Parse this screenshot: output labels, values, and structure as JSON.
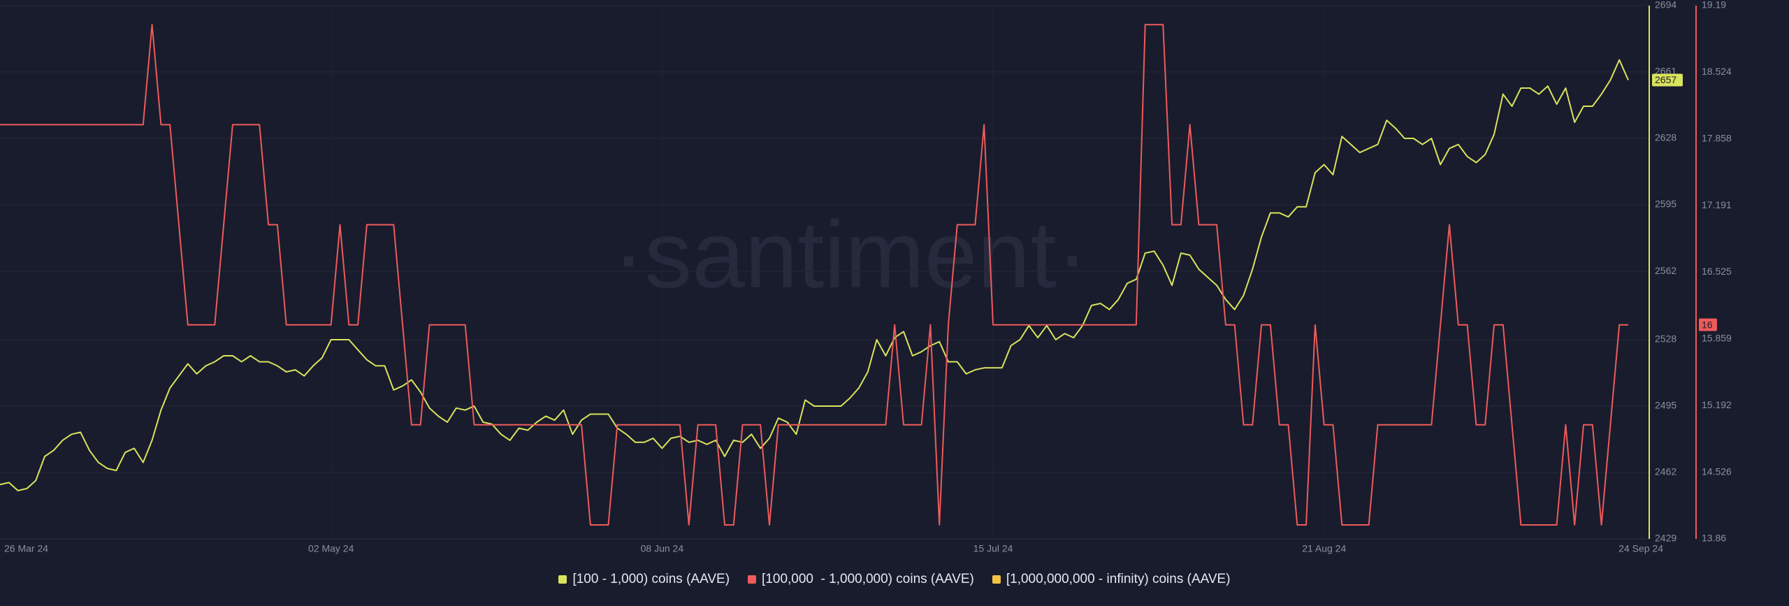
{
  "chart_data": {
    "type": "line",
    "watermark": "·santiment·",
    "categories": [
      "26 Mar 24",
      null,
      null,
      null,
      null,
      null,
      null,
      null,
      null,
      null,
      null,
      null,
      null,
      null,
      null,
      null,
      null,
      null,
      null,
      null,
      null,
      null,
      null,
      null,
      null,
      null,
      null,
      null,
      null,
      null,
      null,
      null,
      null,
      null,
      null,
      null,
      null,
      "02 May 24",
      null,
      null,
      null,
      null,
      null,
      null,
      null,
      null,
      null,
      null,
      null,
      null,
      null,
      null,
      null,
      null,
      null,
      null,
      null,
      null,
      null,
      null,
      null,
      null,
      null,
      null,
      null,
      null,
      null,
      null,
      null,
      null,
      null,
      null,
      null,
      null,
      "08 Jun 24",
      null,
      null,
      null,
      null,
      null,
      null,
      null,
      null,
      null,
      null,
      null,
      null,
      null,
      null,
      null,
      null,
      null,
      null,
      null,
      null,
      null,
      null,
      null,
      null,
      null,
      null,
      null,
      null,
      null,
      null,
      null,
      null,
      null,
      null,
      null,
      null,
      "15 Jul 24",
      null,
      null,
      null,
      null,
      null,
      null,
      null,
      null,
      null,
      null,
      null,
      null,
      null,
      null,
      null,
      null,
      null,
      null,
      null,
      null,
      null,
      null,
      null,
      null,
      null,
      null,
      null,
      null,
      null,
      null,
      null,
      null,
      null,
      null,
      null,
      null,
      "21 Aug 24",
      null,
      null,
      null,
      null,
      null,
      null,
      null,
      null,
      null,
      null,
      null,
      null,
      null,
      null,
      null,
      null,
      null,
      null,
      null,
      null,
      null,
      null,
      null,
      null,
      null,
      null,
      null,
      null,
      null,
      null,
      null,
      null,
      null,
      "24 Sep 24"
    ],
    "series": [
      {
        "name": "[100 - 1,000) coins (AAVE)",
        "color": "#d9e35c",
        "axis": "y",
        "values": [
          2456,
          2457,
          2453,
          2454,
          2458,
          2470,
          2473,
          2478,
          2481,
          2482,
          2473,
          2467,
          2464,
          2463,
          2472,
          2474,
          2467,
          2478,
          2493,
          2504,
          2510,
          2516,
          2511,
          2515,
          2517,
          2520,
          2520,
          2517,
          2520,
          2517,
          2517,
          2515,
          2512,
          2513,
          2510,
          2515,
          2519,
          2528,
          2528,
          2528,
          2523,
          2518,
          2515,
          2515,
          2503,
          2505,
          2508,
          2502,
          2494,
          2490,
          2487,
          2494,
          2493,
          2495,
          2487,
          2486,
          2481,
          2478,
          2484,
          2483,
          2487,
          2490,
          2488,
          2493,
          2481,
          2488,
          2491,
          2491,
          2491,
          2484,
          2481,
          2477,
          2477,
          2479,
          2474,
          2479,
          2480,
          2477,
          2478,
          2476,
          2478,
          2470,
          2478,
          2477,
          2481,
          2474,
          2479,
          2489,
          2487,
          2481,
          2498,
          2495,
          2495,
          2495,
          2495,
          2499,
          2504,
          2512,
          2528,
          2520,
          2529,
          2532,
          2520,
          2522,
          2525,
          2527,
          2517,
          2517,
          2511,
          2513,
          2514,
          2514,
          2514,
          2525,
          2528,
          2535,
          2529,
          2535,
          2528,
          2531,
          2529,
          2535,
          2545,
          2546,
          2543,
          2548,
          2556,
          2558,
          2571,
          2572,
          2565,
          2555,
          2571,
          2570,
          2563,
          2559,
          2555,
          2548,
          2543,
          2550,
          2563,
          2579,
          2591,
          2591,
          2589,
          2594,
          2594,
          2611,
          2615,
          2610,
          2629,
          2625,
          2621,
          2623,
          2625,
          2637,
          2633,
          2628,
          2628,
          2625,
          2628,
          2615,
          2623,
          2625,
          2619,
          2616,
          2620,
          2630,
          2650,
          2644,
          2653,
          2653,
          2650,
          2654,
          2645,
          2653,
          2636,
          2644,
          2644,
          2650,
          2657,
          2667,
          2657
        ]
      },
      {
        "name": "[100,000  - 1,000,000) coins (AAVE)",
        "color": "#ef5a5a",
        "axis": "y2",
        "values": [
          18,
          18,
          18,
          18,
          18,
          18,
          18,
          18,
          18,
          18,
          18,
          18,
          18,
          18,
          18,
          18,
          18,
          19,
          18,
          18,
          17,
          16,
          16,
          16,
          16,
          17,
          18,
          18,
          18,
          18,
          17,
          17,
          16,
          16,
          16,
          16,
          16,
          16,
          17,
          16,
          16,
          17,
          17,
          17,
          17,
          16,
          15,
          15,
          16,
          16,
          16,
          16,
          16,
          15,
          15,
          15,
          15,
          15,
          15,
          15,
          15,
          15,
          15,
          15,
          15,
          15,
          14,
          14,
          14,
          15,
          15,
          15,
          15,
          15,
          15,
          15,
          15,
          14,
          15,
          15,
          15,
          14,
          14,
          15,
          15,
          15,
          14,
          15,
          15,
          15,
          15,
          15,
          15,
          15,
          15,
          15,
          15,
          15,
          15,
          15,
          16,
          15,
          15,
          15,
          16,
          14,
          16,
          17,
          17,
          17,
          18,
          16,
          16,
          16,
          16,
          16,
          16,
          16,
          16,
          16,
          16,
          16,
          16,
          16,
          16,
          16,
          16,
          16,
          19,
          19,
          19,
          17,
          17,
          18,
          17,
          17,
          17,
          16,
          16,
          15,
          15,
          16,
          16,
          15,
          15,
          14,
          14,
          16,
          15,
          15,
          14,
          14,
          14,
          14,
          15,
          15,
          15,
          15,
          15,
          15,
          15,
          16,
          17,
          16,
          16,
          15,
          15,
          16,
          16,
          15,
          14,
          14,
          14,
          14,
          14,
          15,
          14,
          15,
          15,
          14,
          15,
          16,
          16
        ]
      },
      {
        "name": "[1,000,000,000 - infinity) coins (AAVE)",
        "color": "#f3c243"
      }
    ],
    "ylim": [
      2429,
      2694
    ],
    "yticks": [
      2429,
      2462,
      2495,
      2528,
      2562,
      2595,
      2628,
      2661,
      2694
    ],
    "y2lim": [
      13.86,
      19.19
    ],
    "y2ticks": [
      13.86,
      14.526,
      15.192,
      15.859,
      16.525,
      17.191,
      17.858,
      18.524,
      19.19
    ],
    "grid": true
  }
}
